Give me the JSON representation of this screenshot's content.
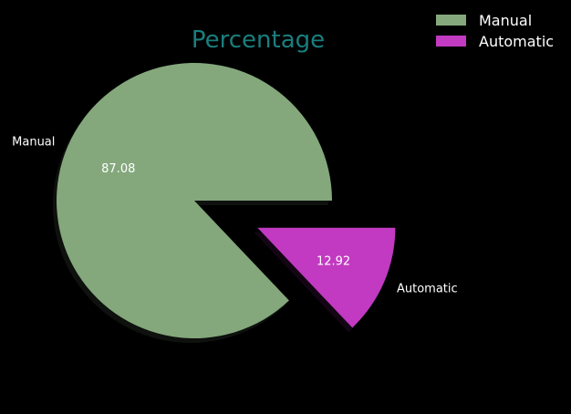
{
  "chart_data": {
    "type": "pie",
    "title": "Percentage",
    "categories": [
      "Manual",
      "Automatic"
    ],
    "values": [
      87.08,
      12.92
    ],
    "value_labels": [
      "87.08",
      "12.92"
    ],
    "explode": [
      0,
      0.5
    ],
    "shadow": true,
    "legend": {
      "placement": "top-right",
      "entries": [
        "Manual",
        "Automatic"
      ]
    },
    "colors": {
      "Manual": "#84a87c",
      "Automatic": "#c13ac1",
      "title": "#1a7e7e",
      "background": "#000000",
      "text": "#ffffff"
    }
  }
}
